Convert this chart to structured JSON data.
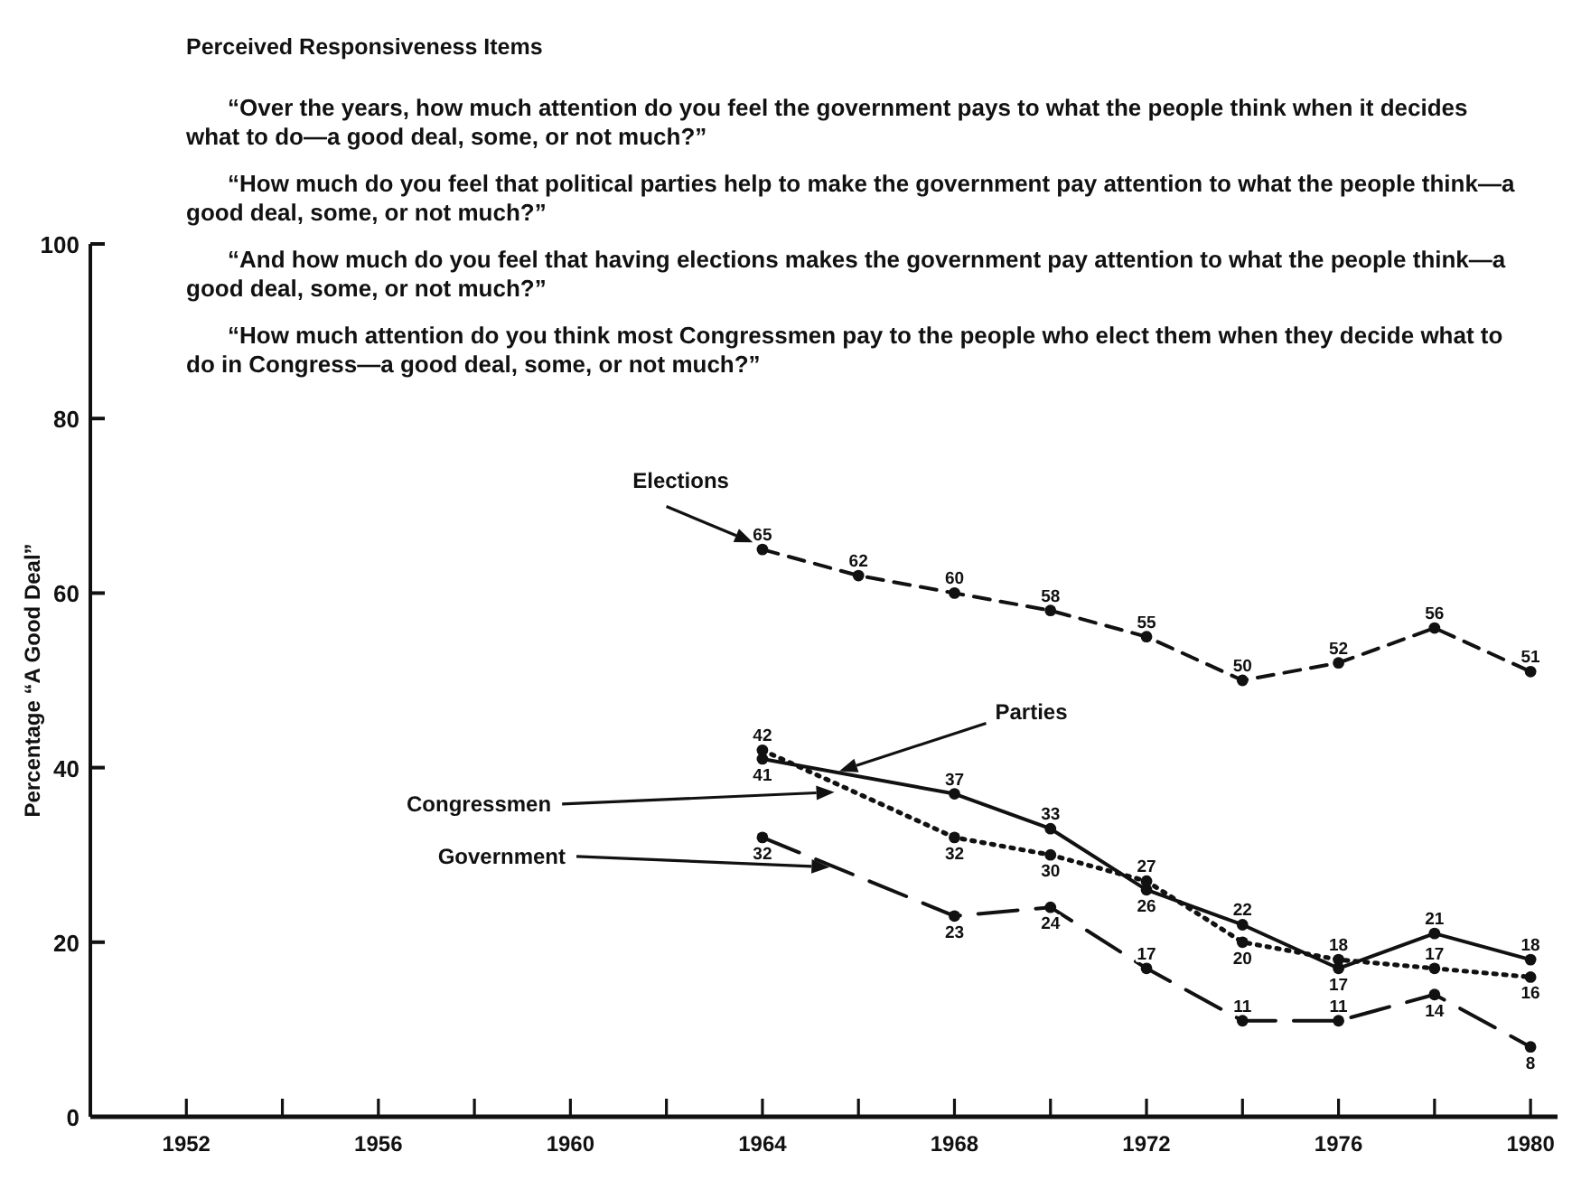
{
  "chart_data": {
    "type": "line",
    "title": "Perceived Responsiveness Items",
    "annotations": [
      "“Over the years, how much attention do you feel the government pays to what the people think when it decides what to do—a good deal, some, or not much?”",
      "“How much do you feel that political parties help to make the government pay attention to what the people think—a good deal, some, or not much?”",
      "“And how much do you feel that having elections makes the government pay attention to what the people think—a good deal, some, or not much?”",
      "“How much attention do you think most Congressmen pay to the people who elect them when they decide what to do in Congress—a good deal, some, or not much?”"
    ],
    "ylabel": "Percentage “A Good Deal”",
    "x": [
      1964,
      1966,
      1968,
      1970,
      1972,
      1974,
      1976,
      1978,
      1980
    ],
    "series": [
      {
        "name": "Elections",
        "color": "#111111",
        "line_style": "dashed",
        "values": [
          65,
          62,
          60,
          58,
          55,
          50,
          52,
          56,
          51
        ]
      },
      {
        "name": "Parties",
        "color": "#111111",
        "line_style": "solid",
        "values": [
          41,
          null,
          37,
          33,
          26,
          22,
          17,
          21,
          18
        ]
      },
      {
        "name": "Congressmen",
        "color": "#111111",
        "line_style": "dotted",
        "values": [
          42,
          null,
          32,
          30,
          27,
          20,
          18,
          17,
          16
        ]
      },
      {
        "name": "Government",
        "color": "#111111",
        "line_style": "dashed",
        "values": [
          32,
          null,
          23,
          24,
          17,
          11,
          11,
          14,
          8
        ]
      }
    ],
    "xlim": [
      1950,
      1980.6
    ],
    "xticks": [
      {
        "value": 1950,
        "label": null
      },
      1952,
      {
        "value": 1954,
        "label": null
      },
      1956,
      {
        "value": 1958,
        "label": null
      },
      1960,
      {
        "value": 1962,
        "label": null
      },
      1964,
      {
        "value": 1966,
        "label": null
      },
      1968,
      {
        "value": 1970,
        "label": null
      },
      1972,
      {
        "value": 1974,
        "label": null
      },
      1976,
      {
        "value": 1978,
        "label": null
      },
      1980
    ],
    "ylim": [
      0,
      100
    ],
    "yticks": [
      0,
      20,
      40,
      60,
      80,
      100
    ],
    "marker": "circle",
    "data_labels": true
  }
}
